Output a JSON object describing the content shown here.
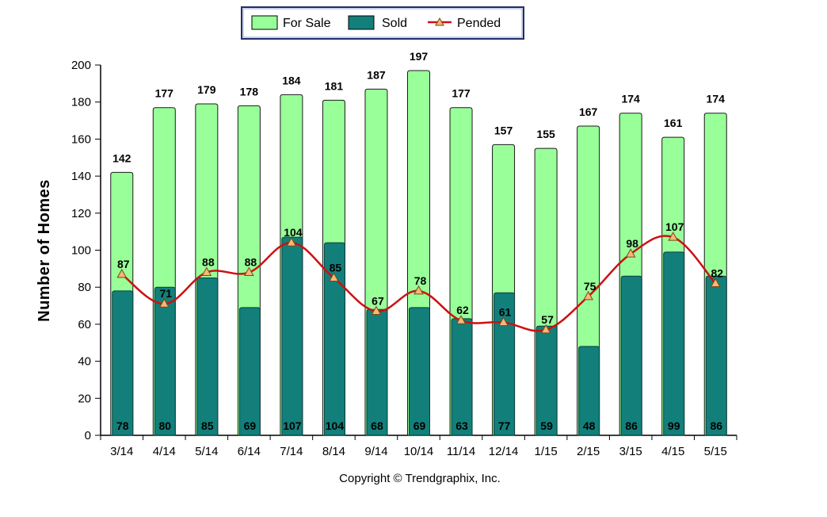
{
  "chart_data": {
    "type": "bar",
    "title": "",
    "xlabel": "",
    "ylabel": "Number of Homes",
    "ylim": [
      0,
      200
    ],
    "yticks": [
      0,
      20,
      40,
      60,
      80,
      100,
      120,
      140,
      160,
      180,
      200
    ],
    "grid": false,
    "legend_position": "top-center",
    "categories": [
      "3/14",
      "4/14",
      "5/14",
      "6/14",
      "7/14",
      "8/14",
      "9/14",
      "10/14",
      "11/14",
      "12/14",
      "1/15",
      "2/15",
      "3/15",
      "4/15",
      "5/15"
    ],
    "series": [
      {
        "name": "For Sale",
        "type": "bar",
        "color": "#99ff99",
        "values": [
          142,
          177,
          179,
          178,
          184,
          181,
          187,
          197,
          177,
          157,
          155,
          167,
          174,
          161,
          174
        ]
      },
      {
        "name": "Sold",
        "type": "bar",
        "color": "#137f7a",
        "values": [
          78,
          80,
          85,
          69,
          107,
          104,
          68,
          69,
          63,
          77,
          59,
          48,
          86,
          99,
          86
        ]
      },
      {
        "name": "Pended",
        "type": "line",
        "color": "#cc1111",
        "marker_color": "#f5b77a",
        "values": [
          87,
          71,
          88,
          88,
          104,
          85,
          67,
          78,
          62,
          61,
          57,
          75,
          98,
          107,
          82
        ]
      }
    ],
    "copyright": "Copyright © Trendgraphix, Inc."
  }
}
